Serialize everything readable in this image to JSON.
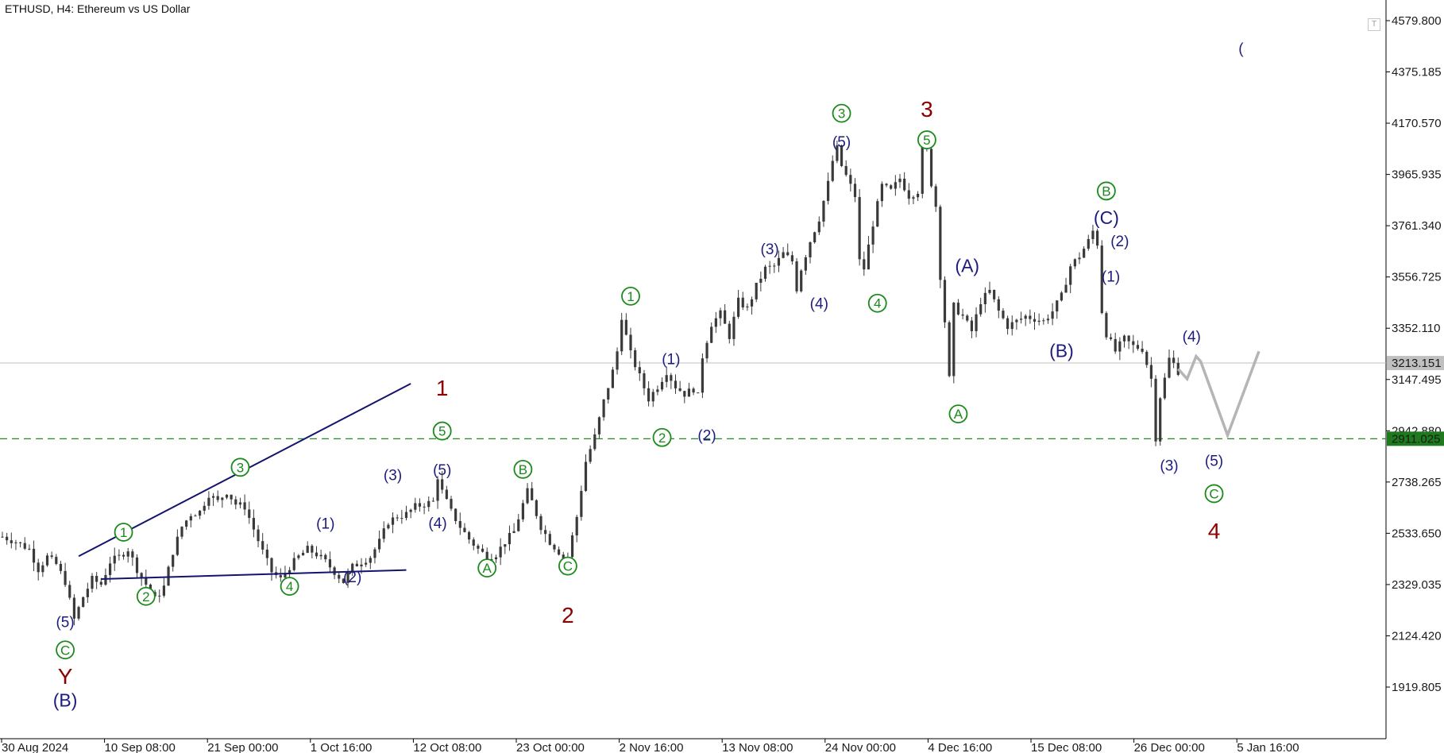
{
  "chart_title": "ETHUSD, H4:  Ethereum vs US Dollar",
  "colors": {
    "candles": "#3a3a3a",
    "wave_blue": "#1c1c7e",
    "wave_green": "#1a8a1a",
    "wave_maroon": "#8b0000",
    "trendline": "#14146e",
    "projection": "#b5b5b5",
    "current_price_line": "#c0c0c0",
    "support_line": "#228b22",
    "support_label_bg": "#1d7a1d",
    "current_label_bg": "#c0c0c0"
  },
  "chart_data": {
    "type": "line",
    "symbol": "ETHUSD",
    "timeframe": "H4",
    "title": "ETHUSD, H4:  Ethereum vs US Dollar",
    "ylim": [
      1800,
      4650
    ],
    "y_ticks": [
      "4579.800",
      "4375.185",
      "4170.570",
      "3965.935",
      "3761.340",
      "3556.725",
      "3352.110",
      "3147.495",
      "2942.880",
      "2738.265",
      "2533.650",
      "2329.035",
      "2124.420",
      "1919.805"
    ],
    "x_ticks": [
      "30 Aug 2024",
      "10 Sep 08:00",
      "21 Sep 00:00",
      "1 Oct 16:00",
      "12 Oct 08:00",
      "23 Oct 00:00",
      "2 Nov 16:00",
      "13 Nov 08:00",
      "24 Nov 00:00",
      "4 Dec 16:00",
      "15 Dec 08:00",
      "26 Dec 00:00",
      "5 Jan 16:00"
    ],
    "current_price": "3213.151",
    "current_price_value": 3213.151,
    "support_level": "2911.025",
    "support_level_value": 2911.025,
    "price_path": [
      [
        0,
        2520
      ],
      [
        3,
        2500
      ],
      [
        6,
        2470
      ],
      [
        8,
        2390
      ],
      [
        10,
        2440
      ],
      [
        12,
        2410
      ],
      [
        14,
        2340
      ],
      [
        16,
        2190
      ],
      [
        18,
        2280
      ],
      [
        20,
        2350
      ],
      [
        22,
        2330
      ],
      [
        24,
        2420
      ],
      [
        26,
        2440
      ],
      [
        28,
        2470
      ],
      [
        30,
        2390
      ],
      [
        32,
        2330
      ],
      [
        34,
        2270
      ],
      [
        36,
        2320
      ],
      [
        38,
        2460
      ],
      [
        40,
        2560
      ],
      [
        42,
        2610
      ],
      [
        44,
        2620
      ],
      [
        46,
        2690
      ],
      [
        48,
        2660
      ],
      [
        50,
        2700
      ],
      [
        52,
        2650
      ],
      [
        54,
        2640
      ],
      [
        56,
        2550
      ],
      [
        58,
        2460
      ],
      [
        60,
        2380
      ],
      [
        62,
        2350
      ],
      [
        64,
        2400
      ],
      [
        66,
        2440
      ],
      [
        68,
        2470
      ],
      [
        70,
        2450
      ],
      [
        72,
        2420
      ],
      [
        74,
        2380
      ],
      [
        76,
        2340
      ],
      [
        78,
        2400
      ],
      [
        80,
        2420
      ],
      [
        82,
        2440
      ],
      [
        84,
        2500
      ],
      [
        86,
        2580
      ],
      [
        88,
        2600
      ],
      [
        90,
        2610
      ],
      [
        92,
        2640
      ],
      [
        94,
        2650
      ],
      [
        96,
        2660
      ],
      [
        97,
        2760
      ],
      [
        98,
        2700
      ],
      [
        100,
        2620
      ],
      [
        102,
        2560
      ],
      [
        104,
        2510
      ],
      [
        106,
        2470
      ],
      [
        108,
        2440
      ],
      [
        110,
        2450
      ],
      [
        112,
        2500
      ],
      [
        114,
        2540
      ],
      [
        116,
        2650
      ],
      [
        117,
        2700
      ],
      [
        118,
        2660
      ],
      [
        120,
        2560
      ],
      [
        122,
        2500
      ],
      [
        124,
        2460
      ],
      [
        125,
        2400
      ],
      [
        126,
        2440
      ],
      [
        128,
        2600
      ],
      [
        130,
        2820
      ],
      [
        132,
        2920
      ],
      [
        134,
        3060
      ],
      [
        136,
        3180
      ],
      [
        137,
        3260
      ],
      [
        138,
        3400
      ],
      [
        139,
        3320
      ],
      [
        140,
        3250
      ],
      [
        142,
        3160
      ],
      [
        144,
        3070
      ],
      [
        146,
        3120
      ],
      [
        148,
        3180
      ],
      [
        150,
        3120
      ],
      [
        152,
        3090
      ],
      [
        154,
        3110
      ],
      [
        155,
        3080
      ],
      [
        156,
        3240
      ],
      [
        158,
        3370
      ],
      [
        160,
        3410
      ],
      [
        162,
        3320
      ],
      [
        164,
        3460
      ],
      [
        166,
        3430
      ],
      [
        168,
        3520
      ],
      [
        170,
        3590
      ],
      [
        172,
        3600
      ],
      [
        174,
        3650
      ],
      [
        176,
        3620
      ],
      [
        177,
        3510
      ],
      [
        178,
        3590
      ],
      [
        180,
        3700
      ],
      [
        182,
        3790
      ],
      [
        184,
        3930
      ],
      [
        185,
        4020
      ],
      [
        186,
        4070
      ],
      [
        187,
        4000
      ],
      [
        188,
        3960
      ],
      [
        190,
        3880
      ],
      [
        191,
        3620
      ],
      [
        192,
        3590
      ],
      [
        194,
        3770
      ],
      [
        196,
        3920
      ],
      [
        198,
        3900
      ],
      [
        200,
        3950
      ],
      [
        202,
        3880
      ],
      [
        204,
        3900
      ],
      [
        205,
        4100
      ],
      [
        206,
        4060
      ],
      [
        207,
        3930
      ],
      [
        208,
        3840
      ],
      [
        209,
        3560
      ],
      [
        210,
        3380
      ],
      [
        211,
        3150
      ],
      [
        212,
        3440
      ],
      [
        214,
        3400
      ],
      [
        216,
        3340
      ],
      [
        218,
        3460
      ],
      [
        220,
        3500
      ],
      [
        222,
        3420
      ],
      [
        224,
        3360
      ],
      [
        226,
        3380
      ],
      [
        228,
        3400
      ],
      [
        230,
        3390
      ],
      [
        232,
        3380
      ],
      [
        234,
        3420
      ],
      [
        236,
        3480
      ],
      [
        238,
        3600
      ],
      [
        240,
        3640
      ],
      [
        242,
        3700
      ],
      [
        243,
        3740
      ],
      [
        244,
        3690
      ],
      [
        245,
        3420
      ],
      [
        246,
        3330
      ],
      [
        248,
        3260
      ],
      [
        250,
        3310
      ],
      [
        252,
        3280
      ],
      [
        254,
        3270
      ],
      [
        255,
        3210
      ],
      [
        256,
        3150
      ],
      [
        257,
        2915
      ],
      [
        258,
        3080
      ],
      [
        259,
        3150
      ],
      [
        260,
        3230
      ],
      [
        261,
        3210
      ],
      [
        262,
        3180
      ]
    ],
    "projection": [
      [
        262,
        3190
      ],
      [
        264,
        3150
      ],
      [
        266,
        3240
      ],
      [
        267,
        3220
      ],
      [
        273,
        2925
      ],
      [
        280,
        3260
      ]
    ],
    "trendlines": [
      {
        "from": [
          17,
          2442
        ],
        "to": [
          91,
          3131
        ]
      },
      {
        "from": [
          22,
          2351
        ],
        "to": [
          90,
          2387
        ]
      }
    ],
    "wave_labels": [
      {
        "text": "(5)",
        "x": 14,
        "y": 2182,
        "style": "blue"
      },
      {
        "text": "C",
        "x": 14,
        "y": 2068,
        "style": "green-circle"
      },
      {
        "text": "Y",
        "x": 14,
        "y": 1964,
        "style": "maroon"
      },
      {
        "text": "(B)",
        "x": 14,
        "y": 1864,
        "style": "blue"
      },
      {
        "text": "1",
        "x": 27,
        "y": 2538,
        "style": "green-circle"
      },
      {
        "text": "2",
        "x": 32,
        "y": 2282,
        "style": "green-circle"
      },
      {
        "text": "3",
        "x": 53,
        "y": 2797,
        "style": "green-circle"
      },
      {
        "text": "4",
        "x": 64,
        "y": 2322,
        "style": "green-circle"
      },
      {
        "text": "(1)",
        "x": 72,
        "y": 2574,
        "style": "blue"
      },
      {
        "text": "(2)",
        "x": 78,
        "y": 2360,
        "style": "blue"
      },
      {
        "text": "(3)",
        "x": 87,
        "y": 2768,
        "style": "blue"
      },
      {
        "text": "(4)",
        "x": 97,
        "y": 2576,
        "style": "blue"
      },
      {
        "text": "(5)",
        "x": 98,
        "y": 2789,
        "style": "blue"
      },
      {
        "text": "5",
        "x": 98,
        "y": 2942,
        "style": "green-circle"
      },
      {
        "text": "1",
        "x": 98,
        "y": 3115,
        "style": "maroon"
      },
      {
        "text": "A",
        "x": 108,
        "y": 2395,
        "style": "green-circle"
      },
      {
        "text": "B",
        "x": 116,
        "y": 2789,
        "style": "green-circle"
      },
      {
        "text": "C",
        "x": 126,
        "y": 2403,
        "style": "green-circle"
      },
      {
        "text": "2",
        "x": 126,
        "y": 2208,
        "style": "maroon"
      },
      {
        "text": "1",
        "x": 140,
        "y": 3480,
        "style": "green-circle"
      },
      {
        "text": "(1)",
        "x": 149,
        "y": 3230,
        "style": "blue"
      },
      {
        "text": "2",
        "x": 147,
        "y": 2916,
        "style": "green-circle"
      },
      {
        "text": "(2)",
        "x": 157,
        "y": 2926,
        "style": "blue"
      },
      {
        "text": "(3)",
        "x": 171,
        "y": 3670,
        "style": "blue"
      },
      {
        "text": "(4)",
        "x": 182,
        "y": 3452,
        "style": "blue"
      },
      {
        "text": "3",
        "x": 187,
        "y": 4210,
        "style": "green-circle"
      },
      {
        "text": "(5)",
        "x": 187,
        "y": 4098,
        "style": "blue"
      },
      {
        "text": "4",
        "x": 195,
        "y": 3452,
        "style": "green-circle"
      },
      {
        "text": "3",
        "x": 206,
        "y": 4228,
        "style": "maroon"
      },
      {
        "text": "5",
        "x": 206,
        "y": 4104,
        "style": "green-circle"
      },
      {
        "text": "(A)",
        "x": 215,
        "y": 3598,
        "style": "blue"
      },
      {
        "text": "A",
        "x": 213,
        "y": 3010,
        "style": "green-circle"
      },
      {
        "text": "(B)",
        "x": 236,
        "y": 3260,
        "style": "blue"
      },
      {
        "text": "B",
        "x": 246,
        "y": 3900,
        "style": "green-circle"
      },
      {
        "text": "(C)",
        "x": 246,
        "y": 3790,
        "style": "blue"
      },
      {
        "text": "(2)",
        "x": 249,
        "y": 3702,
        "style": "blue"
      },
      {
        "text": "(1)",
        "x": 247,
        "y": 3561,
        "style": "blue"
      },
      {
        "text": "(4)",
        "x": 265,
        "y": 3321,
        "style": "blue"
      },
      {
        "text": "(3)",
        "x": 260,
        "y": 2806,
        "style": "blue"
      },
      {
        "text": "(5)",
        "x": 270,
        "y": 2825,
        "style": "blue"
      },
      {
        "text": "C",
        "x": 270,
        "y": 2692,
        "style": "green-circle"
      },
      {
        "text": "4",
        "x": 270,
        "y": 2544,
        "style": "maroon"
      }
    ],
    "edge_labels": [
      {
        "text": "(",
        "x": 276,
        "y": 4470,
        "style": "blue"
      }
    ]
  }
}
